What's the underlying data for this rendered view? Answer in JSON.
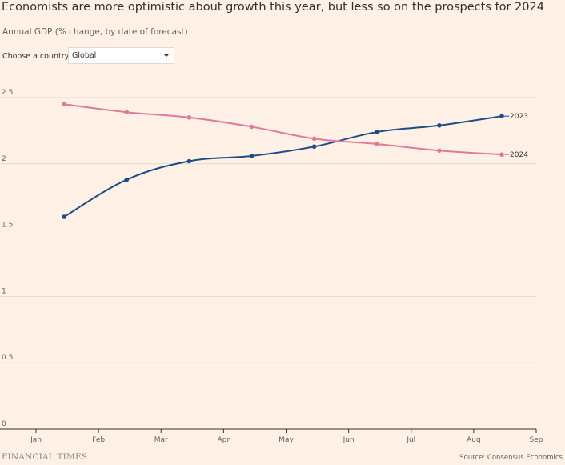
{
  "title": "Economists are more optimistic about growth this year, but less so on the prospects for 2024",
  "subtitle": "Annual GDP (% change, by date of forecast)",
  "selector": {
    "label": "Choose a country:",
    "value": "Global"
  },
  "footer": {
    "brand": "FINANCIAL TIMES",
    "source": "Source: Consensus Economics"
  },
  "colors": {
    "background": "#fff1e5",
    "series_2023": "#204a85",
    "series_2024": "#e07a9a",
    "grid": "#e6d9ce"
  },
  "chart_data": {
    "type": "line",
    "title": "Economists are more optimistic about growth this year, but less so on the prospects for 2024",
    "ylabel": "Annual GDP (% change, by date of forecast)",
    "xlabel": "",
    "x_ticks": [
      "Jan",
      "Feb",
      "Mar",
      "Apr",
      "May",
      "Jun",
      "Jul",
      "Aug",
      "Sep"
    ],
    "xlim": [
      0,
      8
    ],
    "y_ticks": [
      "0",
      "0.5",
      "1",
      "1.5",
      "2",
      "2.5"
    ],
    "ylim": [
      0,
      2.6
    ],
    "x": [
      0.45,
      1.45,
      2.45,
      3.45,
      4.45,
      5.45,
      6.45,
      7.45
    ],
    "series": [
      {
        "name": "2023",
        "values": [
          1.6,
          1.88,
          2.02,
          2.06,
          2.13,
          2.24,
          2.29,
          2.36
        ]
      },
      {
        "name": "2024",
        "values": [
          2.45,
          2.39,
          2.35,
          2.28,
          2.19,
          2.15,
          2.1,
          2.07
        ]
      }
    ],
    "grid": true,
    "legend": "direct labels at line ends"
  }
}
